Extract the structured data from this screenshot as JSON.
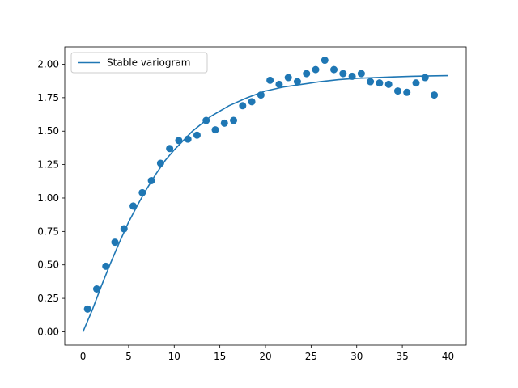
{
  "chart_data": {
    "type": "scatter",
    "title": "",
    "xlabel": "",
    "ylabel": "",
    "xlim": [
      -2.0,
      42.0
    ],
    "ylim": [
      -0.1,
      2.13
    ],
    "x_ticks": [
      0,
      5,
      10,
      15,
      20,
      25,
      30,
      35,
      40
    ],
    "x_tick_labels": [
      "0",
      "5",
      "10",
      "15",
      "20",
      "25",
      "30",
      "35",
      "40"
    ],
    "y_ticks": [
      0.0,
      0.25,
      0.5,
      0.75,
      1.0,
      1.25,
      1.5,
      1.75,
      2.0
    ],
    "y_tick_labels": [
      "0.00",
      "0.25",
      "0.50",
      "0.75",
      "1.00",
      "1.25",
      "1.50",
      "1.75",
      "2.00"
    ],
    "grid": false,
    "legend_position": "top-left",
    "colors": {
      "series": "#1f77b4",
      "axes": "#000000",
      "legend_border": "#cccccc"
    },
    "series": [
      {
        "name": "",
        "type": "scatter",
        "x": [
          0.5,
          1.5,
          2.5,
          3.5,
          4.5,
          5.5,
          6.5,
          7.5,
          8.5,
          9.5,
          10.5,
          11.5,
          12.5,
          13.5,
          14.5,
          15.5,
          16.5,
          17.5,
          18.5,
          19.5,
          20.5,
          21.5,
          22.5,
          23.5,
          24.5,
          25.5,
          26.5,
          27.5,
          28.5,
          29.5,
          30.5,
          31.5,
          32.5,
          33.5,
          34.5,
          35.5,
          36.5,
          37.5,
          38.5
        ],
        "y": [
          0.17,
          0.32,
          0.49,
          0.67,
          0.77,
          0.94,
          1.04,
          1.13,
          1.26,
          1.37,
          1.43,
          1.44,
          1.47,
          1.58,
          1.51,
          1.56,
          1.58,
          1.69,
          1.72,
          1.77,
          1.88,
          1.85,
          1.9,
          1.87,
          1.93,
          1.96,
          2.03,
          1.96,
          1.93,
          1.91,
          1.93,
          1.87,
          1.86,
          1.85,
          1.8,
          1.79,
          1.86,
          1.9,
          1.77
        ]
      },
      {
        "name": "Stable variogram",
        "type": "line",
        "x": [
          0,
          1,
          2,
          3,
          4,
          5,
          6,
          7,
          8,
          9,
          10,
          12,
          14,
          16,
          18,
          20,
          22,
          24,
          26,
          28,
          30,
          32,
          34,
          36,
          38,
          40
        ],
        "y": [
          0.0,
          0.16,
          0.34,
          0.51,
          0.67,
          0.82,
          0.95,
          1.07,
          1.18,
          1.28,
          1.36,
          1.5,
          1.61,
          1.69,
          1.75,
          1.8,
          1.83,
          1.85,
          1.87,
          1.885,
          1.895,
          1.9,
          1.905,
          1.91,
          1.913,
          1.915
        ]
      }
    ]
  }
}
